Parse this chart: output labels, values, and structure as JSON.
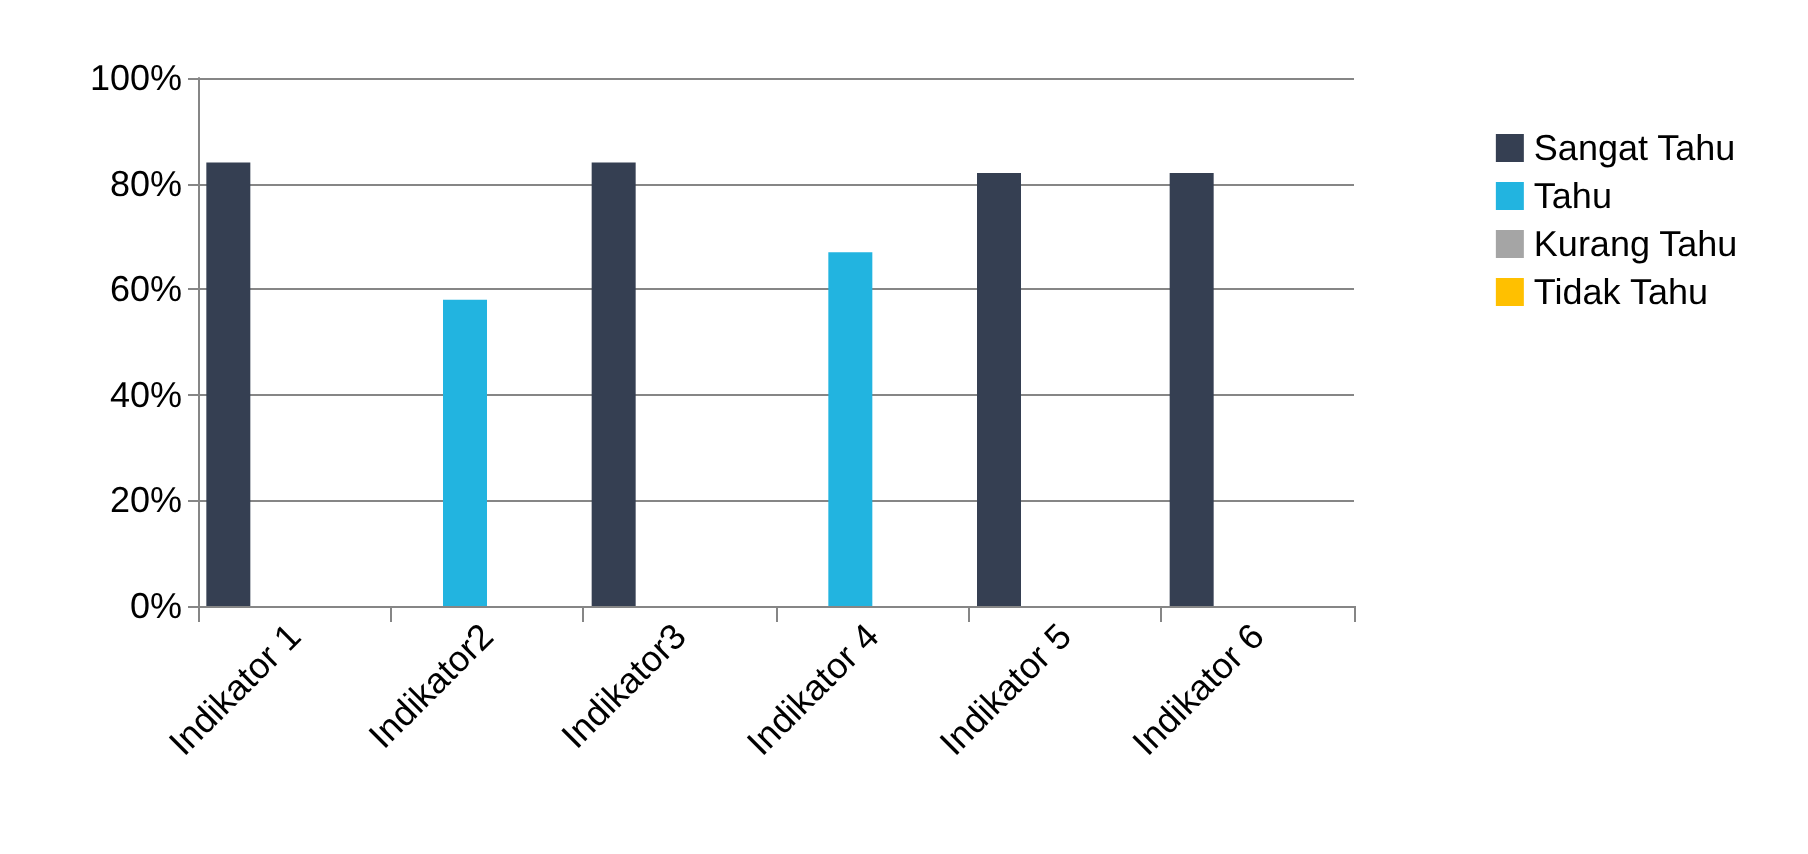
{
  "chart_data": {
    "type": "bar",
    "categories": [
      "Indikator 1",
      "Indikator2",
      "Indikator3",
      "Indikator 4",
      "Indikator 5",
      "Indikator 6"
    ],
    "series": [
      {
        "name": "Sangat Tahu",
        "color": "#353f52",
        "values": [
          84,
          0,
          84,
          0,
          82,
          82
        ]
      },
      {
        "name": "Tahu",
        "color": "#22b4e0",
        "values": [
          0,
          58,
          0,
          67,
          0,
          0
        ]
      },
      {
        "name": "Kurang Tahu",
        "color": "#a5a5a5",
        "values": [
          0,
          0,
          0,
          0,
          0,
          0
        ]
      },
      {
        "name": "Tidak Tahu",
        "color": "#ffc000",
        "values": [
          0,
          0,
          0,
          0,
          0,
          0
        ]
      }
    ],
    "ylim": [
      0,
      100
    ],
    "yticks": [
      {
        "value": 0,
        "label": "0%"
      },
      {
        "value": 20,
        "label": "20%"
      },
      {
        "value": 40,
        "label": "40%"
      },
      {
        "value": 60,
        "label": "60%"
      },
      {
        "value": 80,
        "label": "80%"
      },
      {
        "value": 100,
        "label": "100%"
      }
    ],
    "grid": "y",
    "legend": "right"
  }
}
